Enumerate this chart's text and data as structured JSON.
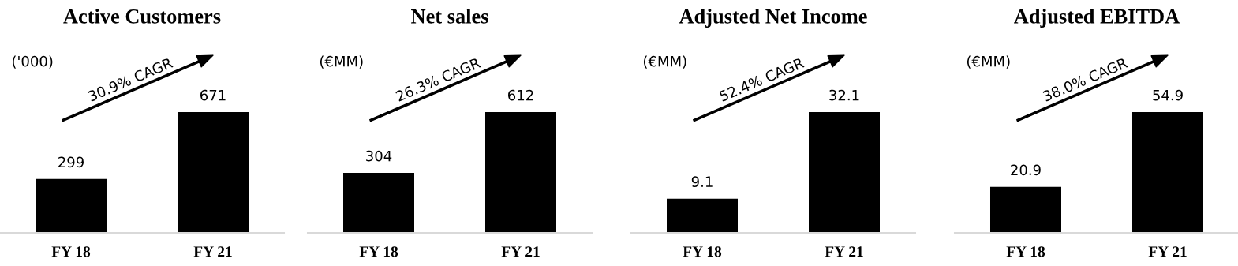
{
  "chart_data": [
    {
      "type": "bar",
      "title": "Active Customers",
      "categories": [
        "FY 18",
        "FY 21"
      ],
      "values": [
        299,
        671
      ],
      "color": "#000000",
      "data_labels": true,
      "tick_labels": "x",
      "grid": false,
      "annotations": [
        "('000)",
        "30.9% CAGR"
      ]
    },
    {
      "type": "bar",
      "title": "Net sales",
      "categories": [
        "FY 18",
        "FY 21"
      ],
      "values": [
        304,
        612
      ],
      "color": "#000000",
      "data_labels": true,
      "tick_labels": "x",
      "grid": false,
      "annotations": [
        "(€MM)",
        "26.3% CAGR"
      ]
    },
    {
      "type": "bar",
      "title": "Adjusted Net Income",
      "categories": [
        "FY 18",
        "FY 21"
      ],
      "values": [
        9.1,
        32.1
      ],
      "color": "#000000",
      "data_labels": true,
      "tick_labels": "x",
      "grid": false,
      "annotations": [
        "(€MM)",
        "52.4% CAGR"
      ]
    },
    {
      "type": "bar",
      "title": "Adjusted EBITDA",
      "categories": [
        "FY 18",
        "FY 21"
      ],
      "values": [
        20.9,
        54.9
      ],
      "color": "#000000",
      "data_labels": true,
      "tick_labels": "x",
      "grid": false,
      "annotations": [
        "(€MM)",
        "38.0% CAGR"
      ]
    }
  ]
}
